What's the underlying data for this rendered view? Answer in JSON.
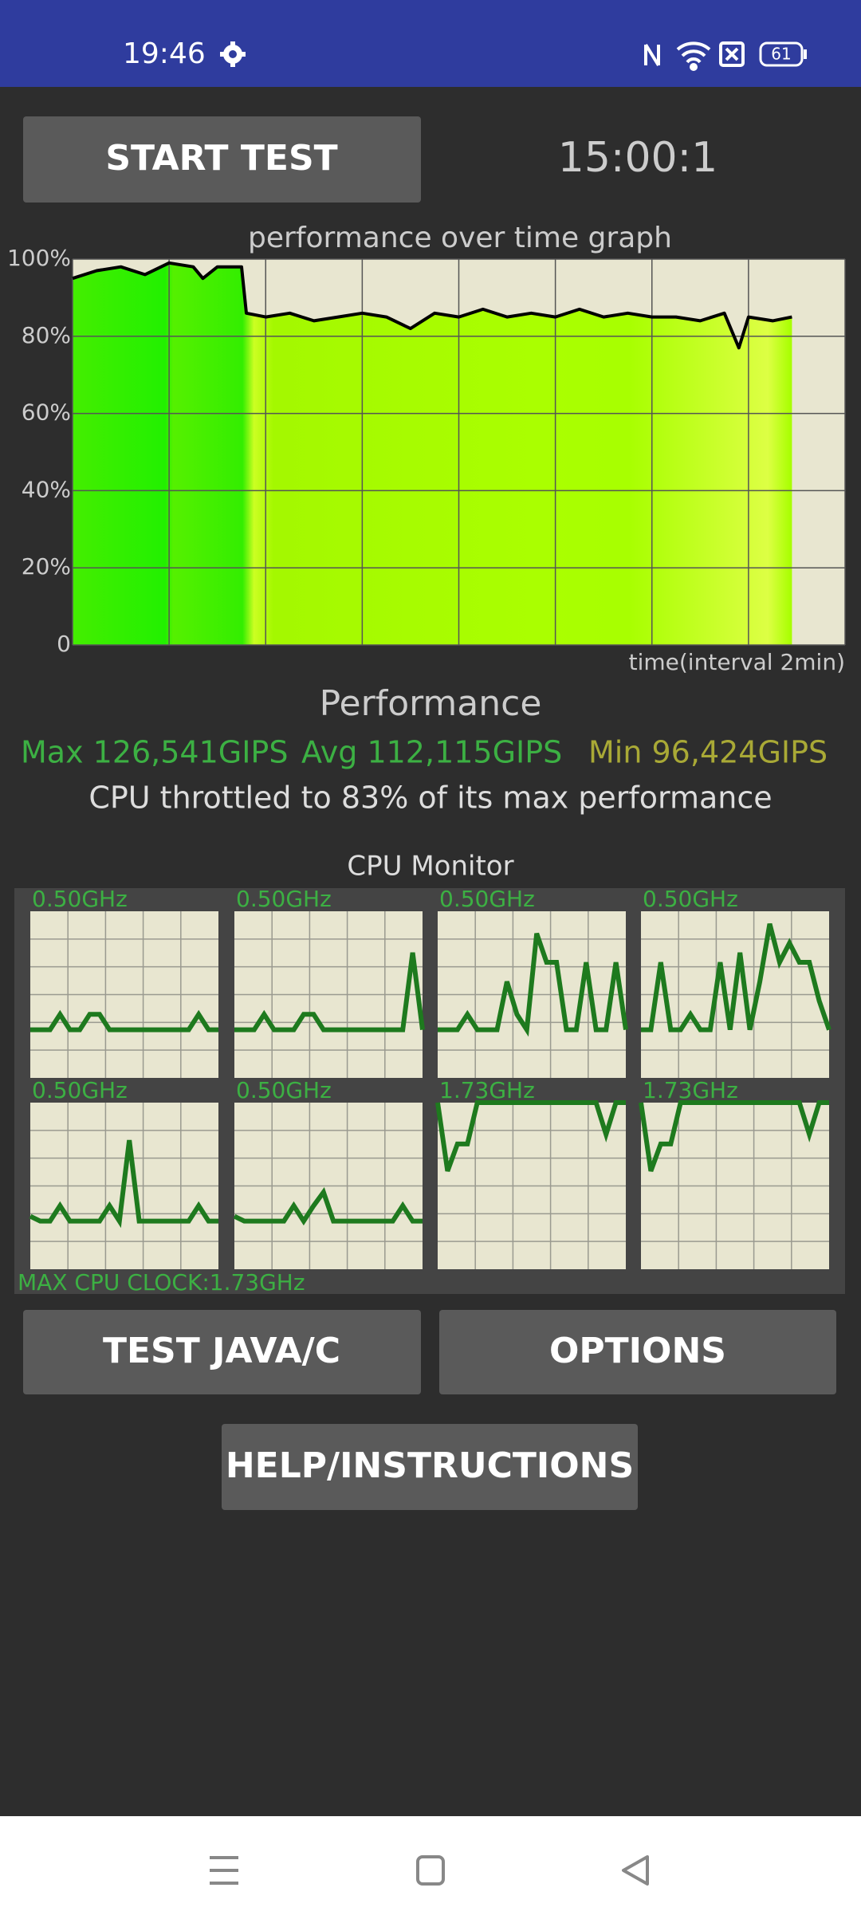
{
  "status_bar": {
    "time": "19:46",
    "battery": "61"
  },
  "start_button": "START TEST",
  "timer": "15:00:1",
  "chart_data": {
    "type": "area",
    "title": "performance over time graph",
    "x_label": "time(interval 2min)",
    "x": [
      0,
      0.5,
      1,
      1.5,
      2,
      2.5,
      2.7,
      3,
      3.5,
      3.6,
      4,
      4.5,
      5,
      5.5,
      6,
      6.5,
      7,
      7.5,
      8,
      8.5,
      9,
      9.5,
      10,
      10.5,
      11,
      11.5,
      12,
      12.5,
      13,
      13.5,
      13.8,
      14,
      14.5,
      14.9
    ],
    "values": [
      95,
      97,
      98,
      96,
      99,
      98,
      95,
      98,
      98,
      86,
      85,
      86,
      84,
      85,
      86,
      85,
      82,
      86,
      85,
      87,
      85,
      86,
      85,
      87,
      85,
      86,
      85,
      85,
      84,
      86,
      77,
      85,
      84,
      85
    ],
    "xlim": [
      0,
      16
    ],
    "xticks": [
      0,
      2,
      4,
      6,
      8,
      10,
      12,
      14,
      16
    ],
    "ylim": [
      0,
      100
    ],
    "yticks": [
      0,
      {
        "value": 20,
        "label": "20%"
      },
      {
        "value": 40,
        "label": "40%"
      },
      {
        "value": 60,
        "label": "60%"
      },
      {
        "value": 80,
        "label": "80%"
      },
      {
        "value": 100,
        "label": "100%"
      }
    ],
    "grid": true,
    "color": "#000000"
  },
  "performance": {
    "heading": "Performance",
    "max": "Max 126,541GIPS",
    "avg": "Avg 112,115GIPS",
    "min": "Min 96,424GIPS",
    "throttle": "CPU throttled to 83% of its max performance"
  },
  "cpu_monitor": {
    "title": "CPU Monitor",
    "max_clock": "MAX CPU CLOCK:1.73GHz",
    "ylim": [
      0,
      1.73
    ],
    "color": "#1e7a1e",
    "cores": [
      {
        "label": "0.50GHz",
        "values": [
          0.5,
          0.5,
          0.5,
          0.66,
          0.5,
          0.5,
          0.66,
          0.66,
          0.5,
          0.5,
          0.5,
          0.5,
          0.5,
          0.5,
          0.5,
          0.5,
          0.5,
          0.66,
          0.5,
          0.5
        ]
      },
      {
        "label": "0.50GHz",
        "values": [
          0.5,
          0.5,
          0.5,
          0.66,
          0.5,
          0.5,
          0.5,
          0.66,
          0.66,
          0.5,
          0.5,
          0.5,
          0.5,
          0.5,
          0.5,
          0.5,
          0.5,
          0.5,
          1.3,
          0.5
        ]
      },
      {
        "label": "0.50GHz",
        "values": [
          0.5,
          0.5,
          0.5,
          0.66,
          0.5,
          0.5,
          0.5,
          1.0,
          0.66,
          0.5,
          1.5,
          1.2,
          1.2,
          0.5,
          0.5,
          1.2,
          0.5,
          0.5,
          1.2,
          0.5
        ]
      },
      {
        "label": "0.50GHz",
        "values": [
          0.5,
          0.5,
          1.2,
          0.5,
          0.5,
          0.66,
          0.5,
          0.5,
          1.2,
          0.5,
          1.3,
          0.5,
          1.0,
          1.6,
          1.2,
          1.4,
          1.2,
          1.2,
          0.8,
          0.5
        ]
      },
      {
        "label": "0.50GHz",
        "values": [
          0.55,
          0.5,
          0.5,
          0.66,
          0.5,
          0.5,
          0.5,
          0.5,
          0.66,
          0.5,
          1.34,
          0.5,
          0.5,
          0.5,
          0.5,
          0.5,
          0.5,
          0.66,
          0.5,
          0.5
        ]
      },
      {
        "label": "0.50GHz",
        "values": [
          0.55,
          0.5,
          0.5,
          0.5,
          0.5,
          0.5,
          0.66,
          0.5,
          0.66,
          0.8,
          0.5,
          0.5,
          0.5,
          0.5,
          0.5,
          0.5,
          0.5,
          0.66,
          0.5,
          0.5
        ]
      },
      {
        "label": "1.73GHz",
        "values": [
          1.73,
          1.02,
          1.3,
          1.3,
          1.73,
          1.73,
          1.73,
          1.73,
          1.73,
          1.73,
          1.73,
          1.73,
          1.73,
          1.73,
          1.73,
          1.73,
          1.73,
          1.4,
          1.73,
          1.73
        ]
      },
      {
        "label": "1.73GHz",
        "values": [
          1.73,
          1.02,
          1.3,
          1.3,
          1.73,
          1.73,
          1.73,
          1.73,
          1.73,
          1.73,
          1.73,
          1.73,
          1.73,
          1.73,
          1.73,
          1.73,
          1.73,
          1.4,
          1.73,
          1.73
        ]
      }
    ]
  },
  "buttons": [
    "TEST JAVA/C",
    "OPTIONS",
    "HELP/INSTRUCTIONS"
  ]
}
